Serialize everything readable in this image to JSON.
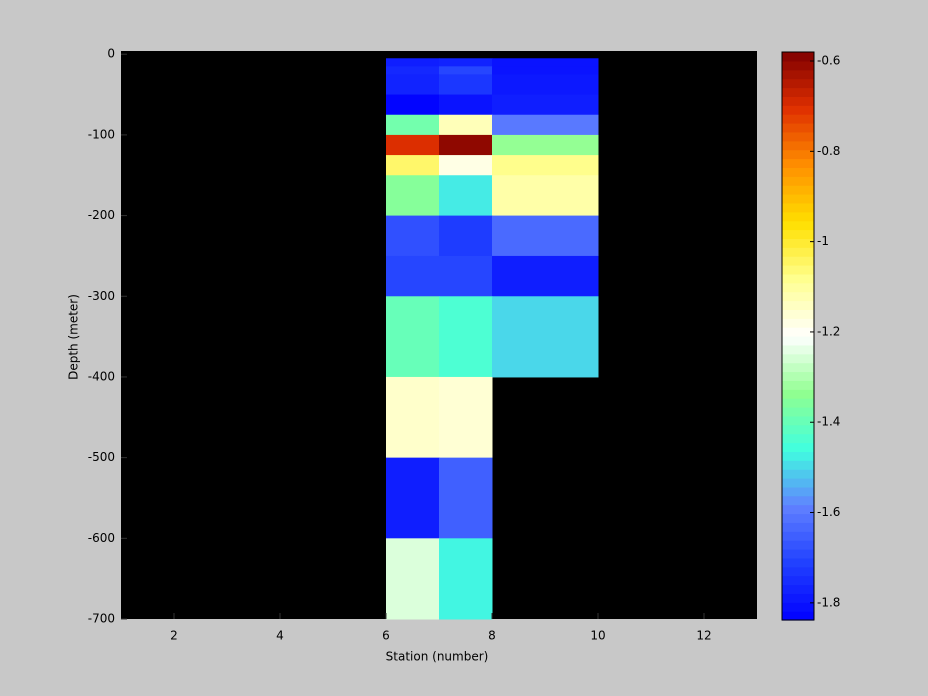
{
  "chart_data": {
    "type": "heatmap",
    "xlabel": "Station (number)",
    "ylabel": "Depth (meter)",
    "xlim": [
      1,
      13
    ],
    "xticks": [
      2,
      4,
      6,
      8,
      10,
      12
    ],
    "ylim": [
      -700,
      4
    ],
    "yticks": [
      0,
      -100,
      -200,
      -300,
      -400,
      -500,
      -600,
      -700
    ],
    "x_edges": [
      6,
      7,
      8,
      10
    ],
    "y_edges": [
      -5,
      -15,
      -25,
      -50,
      -75,
      -100,
      -125,
      -150,
      -200,
      -250,
      -300,
      -400,
      -500,
      -600,
      -700
    ],
    "values": [
      [
        -1.78,
        -1.77,
        -1.8
      ],
      [
        -1.76,
        -1.7,
        -1.8
      ],
      [
        -1.77,
        -1.73,
        -1.79
      ],
      [
        -1.83,
        -1.8,
        -1.78
      ],
      [
        -1.38,
        -1.13,
        -1.6
      ],
      [
        -0.7,
        -0.6,
        -1.33
      ],
      [
        -1.05,
        -1.18,
        -1.08
      ],
      [
        -1.35,
        -1.48,
        -1.11
      ],
      [
        -1.68,
        -1.72,
        -1.63
      ],
      [
        -1.7,
        -1.7,
        -1.78
      ],
      [
        -1.4,
        -1.44,
        -1.5
      ],
      [
        -1.15,
        -1.16,
        null
      ],
      [
        -1.78,
        -1.65,
        null
      ],
      [
        -1.25,
        -1.47,
        null
      ]
    ],
    "clim": [
      -1.838,
      -0.58
    ],
    "cticks": [
      -0.6,
      -0.8,
      -1,
      -1.2,
      -1.4,
      -1.6,
      -1.8
    ],
    "colormap": [
      "#0000ff",
      "#2040ff",
      "#6080ff",
      "#40ffe0",
      "#90ff90",
      "#ffffff",
      "#ffff90",
      "#ffe000",
      "#ff9000",
      "#e03000",
      "#800000"
    ],
    "background": "#000000"
  }
}
